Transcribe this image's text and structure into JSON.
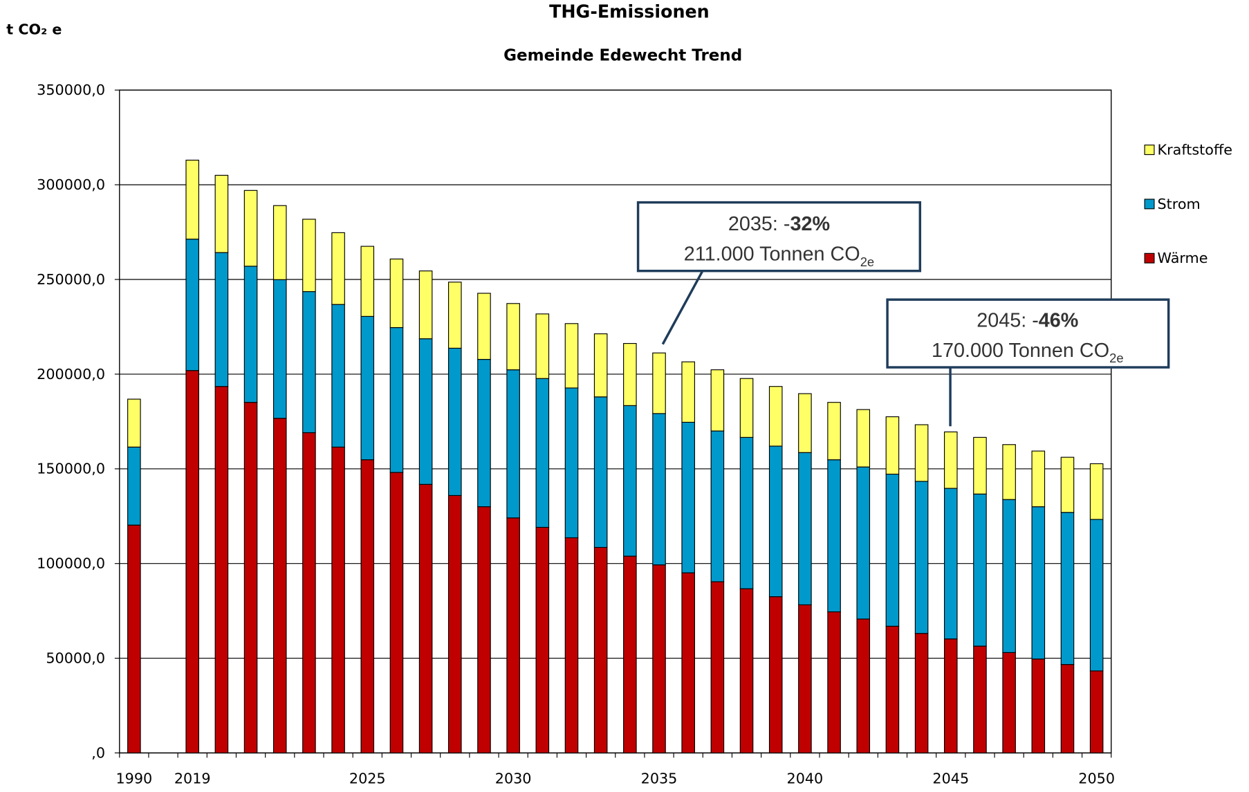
{
  "chart_data": {
    "type": "stacked_bar",
    "title": "THG-Emissionen",
    "subtitle": "Gemeinde Edewecht Trend",
    "y_label": "t CO₂ e",
    "categories": [
      1990,
      null,
      2019,
      null,
      null,
      null,
      null,
      null,
      2025,
      null,
      null,
      null,
      null,
      2030,
      null,
      null,
      null,
      null,
      2035,
      null,
      null,
      null,
      null,
      2040,
      null,
      null,
      null,
      null,
      2045,
      null,
      null,
      null,
      null,
      2050
    ],
    "series": [
      {
        "name": "Wärme",
        "color": "#c00000",
        "values": [
          120300,
          null,
          201900,
          193500,
          185100,
          176700,
          169100,
          161500,
          154800,
          148100,
          141800,
          135900,
          130000,
          124100,
          119100,
          113600,
          108500,
          103900,
          99300,
          95100,
          90400,
          86700,
          82500,
          78200,
          74500,
          70700,
          66900,
          63100,
          60200,
          56400,
          53000,
          49600,
          46700,
          43300
        ]
      },
      {
        "name": "Strom",
        "color": "#0099cc",
        "values": [
          41200,
          null,
          69400,
          70700,
          71900,
          73200,
          74500,
          75300,
          75700,
          76500,
          76900,
          77800,
          77800,
          78200,
          78600,
          79100,
          79500,
          79500,
          79900,
          79500,
          79600,
          79900,
          79500,
          80400,
          80300,
          80300,
          80300,
          80300,
          79500,
          80300,
          80800,
          80400,
          80300,
          80000
        ]
      },
      {
        "name": "Kraftstoffe",
        "color": "#ffff66",
        "values": [
          25300,
          null,
          41700,
          40800,
          40000,
          39100,
          38200,
          37900,
          37000,
          36200,
          35800,
          34900,
          34900,
          35000,
          34100,
          34000,
          33300,
          32800,
          32000,
          31900,
          32300,
          31100,
          31500,
          31100,
          30300,
          30300,
          30300,
          29900,
          29800,
          29900,
          29000,
          29400,
          29100,
          29400
        ]
      }
    ],
    "ylim": [
      0,
      350000
    ],
    "yticks": [
      {
        "value": 0,
        "label": ",0"
      },
      {
        "value": 50000,
        "label": "50000,0"
      },
      {
        "value": 100000,
        "label": "100000,0"
      },
      {
        "value": 150000,
        "label": "150000,0"
      },
      {
        "value": 200000,
        "label": "200000,0"
      },
      {
        "value": 250000,
        "label": "250000,0"
      },
      {
        "value": 300000,
        "label": "300000,0"
      },
      {
        "value": 350000,
        "label": "350000,0"
      }
    ],
    "grid": true,
    "legend": "right",
    "annotations": [
      {
        "prefix": "2035:  -",
        "emphasis": "32%",
        "text": "211.000 Tonnen CO",
        "subscript": "2e"
      },
      {
        "prefix": "2045:  -",
        "emphasis": "46%",
        "text": "170.000 Tonnen CO",
        "subscript": "2e"
      }
    ]
  }
}
